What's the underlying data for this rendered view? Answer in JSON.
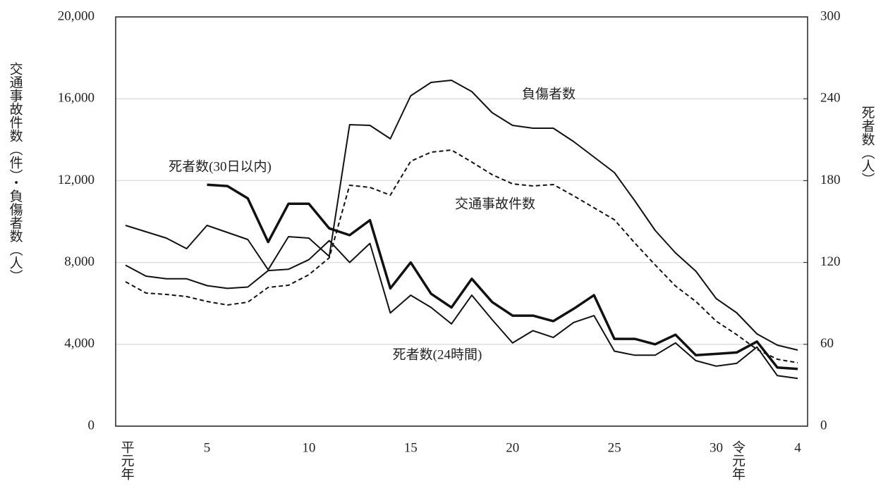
{
  "chart_data": {
    "type": "line",
    "y_label": "交通事故件数（件）・負傷者数（人）",
    "y2_label": "死者数（人）",
    "categories": [
      "平元年",
      null,
      null,
      null,
      "5",
      null,
      null,
      null,
      null,
      "10",
      null,
      null,
      null,
      null,
      "15",
      null,
      null,
      null,
      null,
      "20",
      null,
      null,
      null,
      null,
      "25",
      null,
      null,
      null,
      null,
      "30",
      "令元年",
      null,
      null,
      "4"
    ],
    "ylim": [
      0,
      20000
    ],
    "yticks": [
      0,
      {
        "value": 4000,
        "label": "4,000"
      },
      {
        "value": 8000,
        "label": "8,000"
      },
      {
        "value": 12000,
        "label": "12,000"
      },
      {
        "value": 16000,
        "label": "16,000"
      },
      {
        "value": 20000,
        "label": "20,000"
      }
    ],
    "y2lim": [
      0,
      300
    ],
    "y2ticks": [
      0,
      60,
      120,
      180,
      240,
      300
    ],
    "grid": true,
    "series": [
      {
        "name": "交通事故件数",
        "color": "#111111",
        "dashed": true,
        "values": [
          7057,
          6506,
          6437,
          6334,
          6093,
          5921,
          6059,
          6781,
          6885,
          7401,
          8227,
          11773,
          11670,
          11291,
          12943,
          13391,
          13494,
          12909,
          12289,
          11842,
          11738,
          11807,
          11256,
          10671,
          10086,
          8950,
          7883,
          6850,
          6093,
          5129,
          4475,
          3752,
          3270,
          3098
        ]
      },
      {
        "name": "負傷者数",
        "color": "#111111",
        "values": [
          9811,
          9501,
          9191,
          8675,
          9811,
          9466,
          9122,
          7642,
          9260,
          9191,
          8296,
          14733,
          14699,
          14045,
          16145,
          16799,
          16902,
          16351,
          15318,
          14699,
          14561,
          14561,
          13907,
          13150,
          12392,
          11015,
          9570,
          8468,
          7573,
          6231,
          5542,
          4509,
          3959,
          3718
        ]
      },
      {
        "name": "死者数(30日以内)",
        "color": "#111111",
        "axis": "y2",
        "values": [
          null,
          null,
          null,
          null,
          177,
          176,
          167,
          135,
          163,
          163,
          145,
          140,
          151,
          101,
          120,
          97,
          87,
          108,
          91,
          81,
          81,
          77,
          86,
          96,
          64,
          64,
          60,
          67,
          52,
          53,
          54,
          62,
          43,
          42
        ]
      },
      {
        "name": "死者数(24時間)",
        "color": "#111111",
        "axis": "y2",
        "values": [
          118,
          110,
          108,
          108,
          103,
          101,
          102,
          114,
          115,
          122,
          136,
          120,
          134,
          83,
          96,
          87,
          75,
          96,
          78,
          61,
          70,
          65,
          76,
          81,
          55,
          52,
          52,
          61,
          48,
          44,
          46,
          58,
          37,
          35
        ]
      }
    ]
  }
}
